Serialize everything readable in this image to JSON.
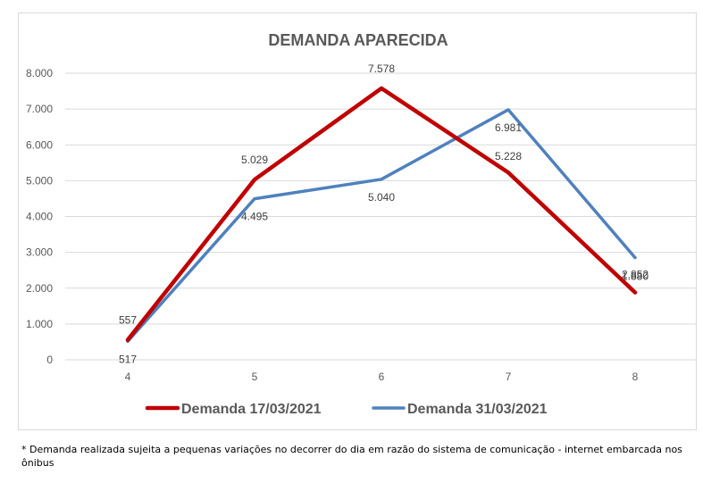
{
  "chart_data": {
    "type": "line",
    "title": "DEMANDA APARECIDA",
    "x": [
      "4",
      "5",
      "6",
      "7",
      "8"
    ],
    "ylim": [
      0,
      8000
    ],
    "yticks": [
      0,
      1000,
      2000,
      3000,
      4000,
      5000,
      6000,
      7000,
      8000
    ],
    "ytick_labels": [
      "0",
      "1.000",
      "2.000",
      "3.000",
      "4.000",
      "5.000",
      "6.000",
      "7.000",
      "8.000"
    ],
    "grid": true,
    "legend_position": "bottom",
    "series": [
      {
        "name": "Demanda 17/03/2021",
        "color": "#c00000",
        "values": [
          557,
          5029,
          7578,
          5228,
          1880
        ],
        "labels": [
          "557",
          "5.029",
          "7.578",
          "5.228",
          "1.880"
        ]
      },
      {
        "name": "Demanda 31/03/2021",
        "color": "#4f81bd",
        "values": [
          517,
          4495,
          5040,
          6981,
          2852
        ],
        "labels": [
          "517",
          "4.495",
          "5.040",
          "6.981",
          "2.852"
        ]
      }
    ]
  },
  "footnote": "* Demanda realizada sujeita a pequenas variações no decorrer do dia  em razão do sistema de comunicação - internet embarcada nos ônibus"
}
